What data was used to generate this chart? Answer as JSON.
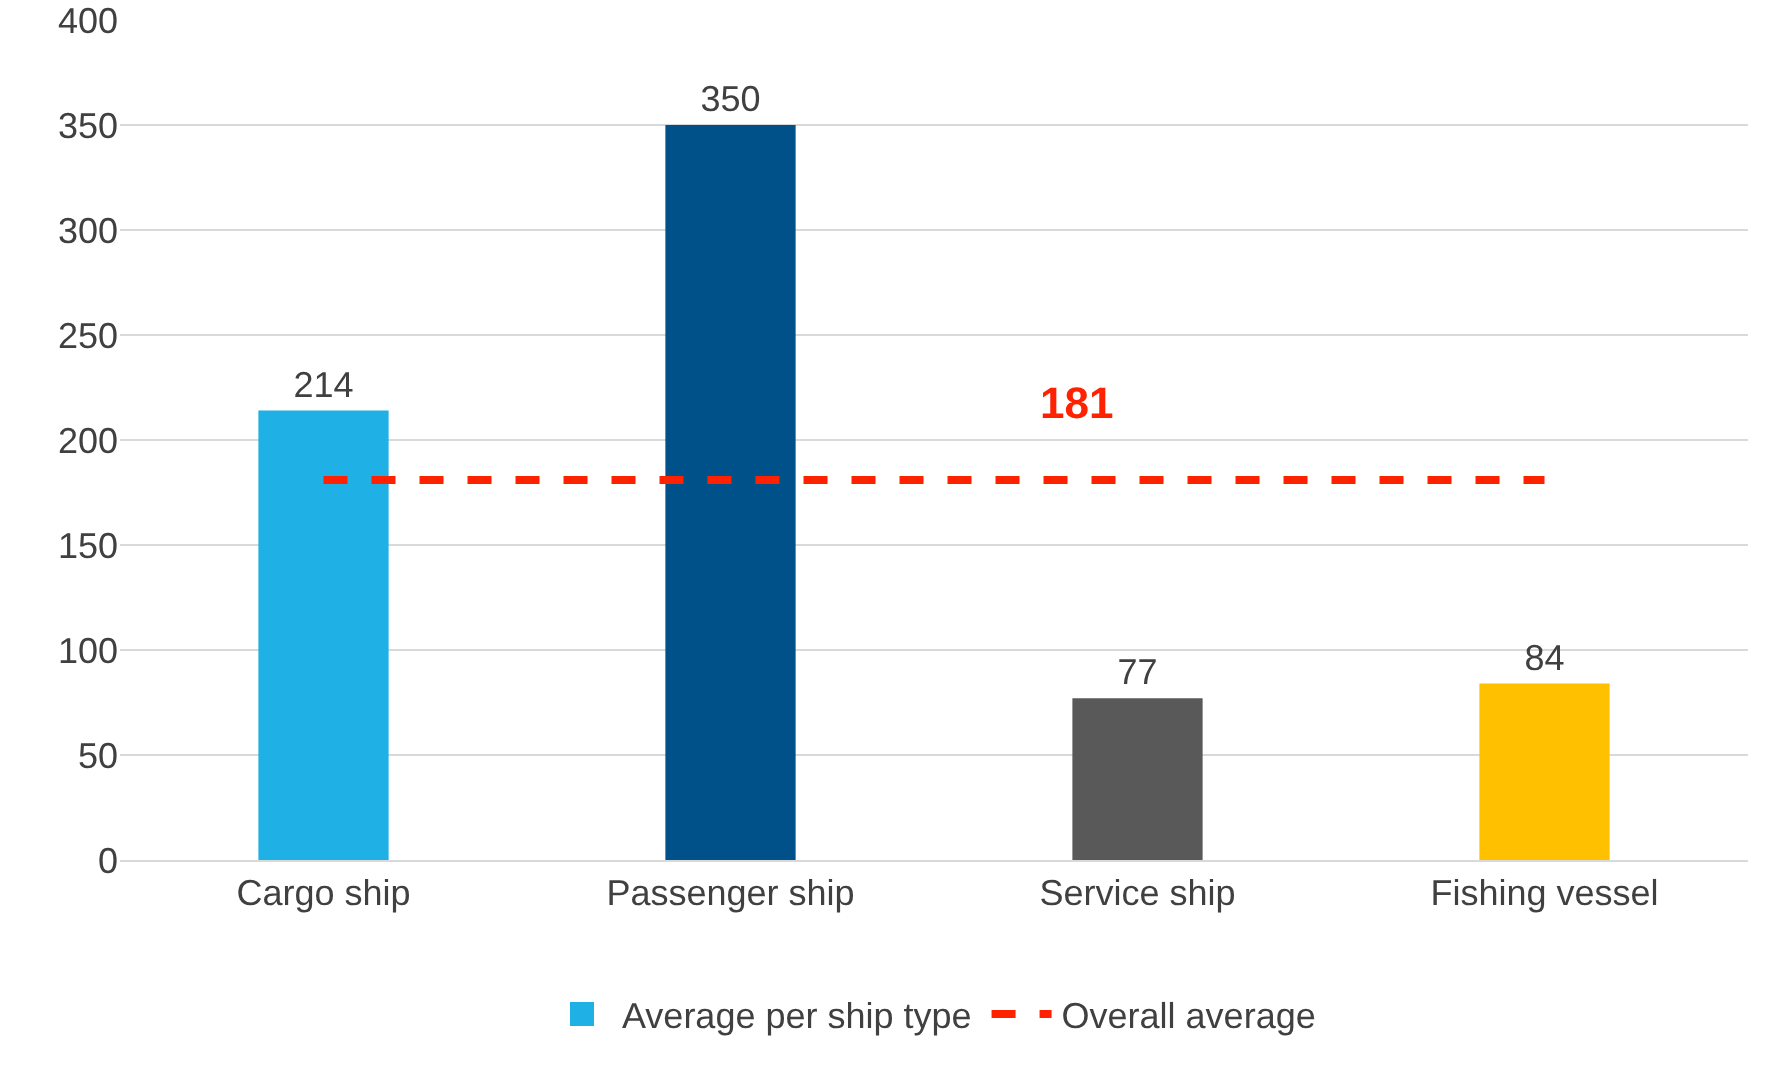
{
  "chart_data": {
    "type": "bar",
    "categories": [
      "Cargo ship",
      "Passenger ship",
      "Service ship",
      "Fishing vessel"
    ],
    "series": [
      {
        "name": "Average per ship type",
        "colors": [
          "#1fb0e6",
          "#00508a",
          "#595959",
          "#ffc000"
        ],
        "values": [
          214,
          350,
          77,
          84
        ],
        "data_labels": true
      },
      {
        "name": "Overall average",
        "type": "line",
        "color": "#ff2200",
        "values": [
          181,
          181,
          181,
          181
        ],
        "line_style": "dashed",
        "marker": "none",
        "value_labels": [
          null,
          null,
          "181",
          null
        ]
      }
    ],
    "ylim": [
      0,
      400
    ],
    "yticks": [
      0,
      50,
      100,
      150,
      200,
      250,
      300,
      350,
      400
    ],
    "grid": "y",
    "legend": "bottom"
  }
}
